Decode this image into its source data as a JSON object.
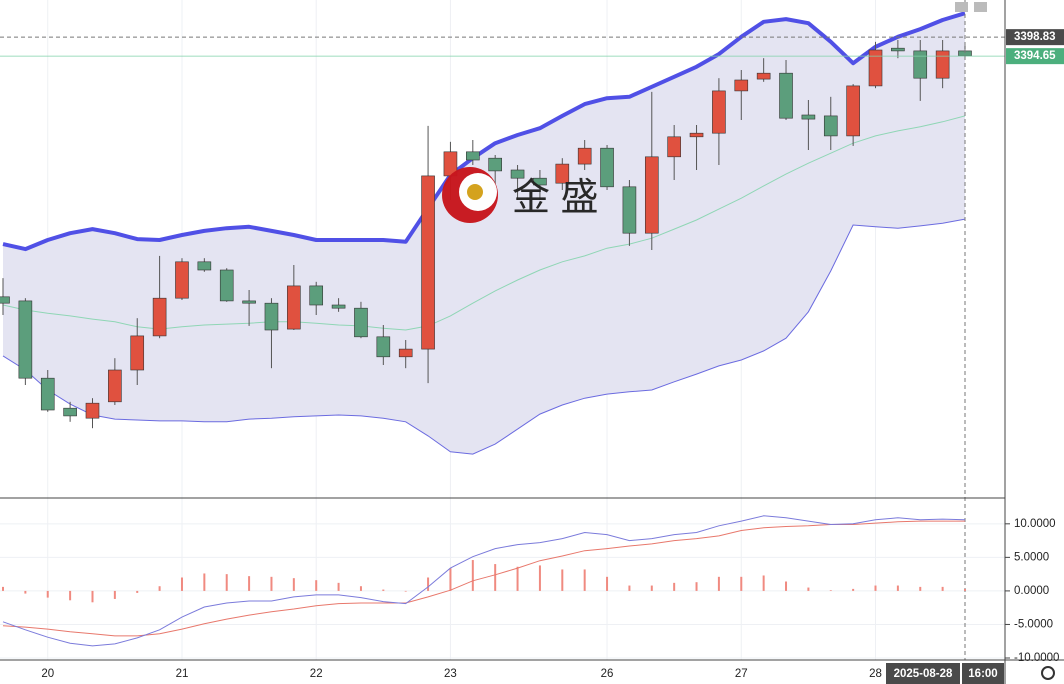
{
  "chart_data": [
    {
      "type": "candlestick",
      "categories": [
        null,
        null,
        "20",
        null,
        null,
        null,
        null,
        null,
        "21",
        null,
        null,
        null,
        null,
        null,
        "22",
        null,
        null,
        null,
        null,
        null,
        "23",
        null,
        null,
        null,
        null,
        null,
        null,
        "26",
        null,
        null,
        null,
        null,
        null,
        "27",
        null,
        null,
        null,
        null,
        null,
        "28",
        null,
        null,
        null,
        null
      ],
      "open": [
        3341.7,
        3340.8,
        3323.8,
        3317.2,
        3315.0,
        3318.6,
        3325.6,
        3333.1,
        3341.4,
        3349.4,
        3347.6,
        3340.8,
        3340.3,
        3334.6,
        3344.1,
        3339.9,
        3339.2,
        3332.9,
        3328.5,
        3330.2,
        3368.3,
        3373.6,
        3372.2,
        3369.6,
        3367.8,
        3366.7,
        3370.9,
        3374.4,
        3365.9,
        3355.7,
        3372.5,
        3376.9,
        3377.7,
        3387.0,
        3389.6,
        3390.9,
        3381.7,
        3381.5,
        3377.1,
        3388.1,
        3396.4,
        3395.8,
        3389.8,
        3395.8
      ],
      "high": [
        3345.8,
        3341.4,
        3325.6,
        3318.6,
        3319.4,
        3328.2,
        3337.0,
        3350.7,
        3350.2,
        3350.2,
        3348.0,
        3343.2,
        3341.4,
        3348.7,
        3345.0,
        3341.4,
        3340.6,
        3335.5,
        3332.2,
        3379.3,
        3375.8,
        3376.2,
        3372.9,
        3370.7,
        3369.6,
        3372.2,
        3376.2,
        3375.1,
        3367.4,
        3386.8,
        3379.5,
        3379.5,
        3389.8,
        3391.6,
        3394.2,
        3393.8,
        3385.0,
        3385.7,
        3388.5,
        3397.8,
        3398.2,
        3398.2,
        3398.2,
        3397.1
      ],
      "low": [
        3337.7,
        3322.3,
        3316.4,
        3314.2,
        3312.8,
        3317.9,
        3322.3,
        3332.6,
        3341.0,
        3347.2,
        3340.6,
        3335.3,
        3326.0,
        3334.4,
        3337.7,
        3338.4,
        3332.6,
        3326.7,
        3326.0,
        3322.7,
        3363.0,
        3370.7,
        3365.2,
        3363.0,
        3363.0,
        3365.2,
        3369.6,
        3365.2,
        3352.9,
        3352.0,
        3367.4,
        3369.6,
        3370.7,
        3380.6,
        3389.0,
        3380.6,
        3374.0,
        3374.0,
        3374.9,
        3387.6,
        3394.2,
        3384.8,
        3387.6,
        3393.8
      ],
      "close": [
        3340.3,
        3323.8,
        3316.8,
        3315.5,
        3318.3,
        3325.6,
        3333.1,
        3341.4,
        3349.4,
        3347.6,
        3340.8,
        3340.3,
        3334.4,
        3344.1,
        3339.9,
        3339.2,
        3332.9,
        3328.5,
        3330.2,
        3368.3,
        3373.6,
        3371.8,
        3369.4,
        3367.8,
        3366.3,
        3370.9,
        3374.4,
        3365.9,
        3355.7,
        3372.5,
        3376.9,
        3377.7,
        3387.0,
        3389.4,
        3390.9,
        3381.0,
        3380.8,
        3377.1,
        3388.1,
        3396.0,
        3395.8,
        3389.8,
        3395.8,
        3394.7
      ],
      "up_color": "#e0513f",
      "down_color": "#5c9e7c",
      "bands": {
        "upper": [
          3353.3,
          3352.2,
          3354.2,
          3355.7,
          3356.6,
          3355.7,
          3354.4,
          3354.2,
          3355.3,
          3356.2,
          3356.8,
          3357.1,
          3356.2,
          3355.3,
          3354.2,
          3354.2,
          3354.2,
          3354.2,
          3353.8,
          3361.2,
          3368.5,
          3372.2,
          3375.5,
          3377.3,
          3378.8,
          3381.5,
          3384.1,
          3385.4,
          3385.7,
          3387.9,
          3390.1,
          3392.3,
          3395.1,
          3398.9,
          3402.2,
          3402.8,
          3401.9,
          3397.8,
          3393.1,
          3396.7,
          3398.9,
          3400.6,
          3402.6,
          3404.1
        ],
        "middle": [
          3339.9,
          3338.8,
          3338.1,
          3337.5,
          3336.8,
          3336.2,
          3335.1,
          3334.6,
          3335.1,
          3335.5,
          3335.7,
          3335.9,
          3336.2,
          3336.2,
          3335.9,
          3335.5,
          3335.3,
          3334.8,
          3334.4,
          3335.3,
          3337.5,
          3340.3,
          3343.0,
          3345.4,
          3347.6,
          3349.4,
          3350.7,
          3352.4,
          3353.3,
          3354.6,
          3356.6,
          3358.6,
          3361.0,
          3363.4,
          3366.1,
          3368.7,
          3371.1,
          3373.3,
          3375.5,
          3377.1,
          3378.2,
          3379.1,
          3380.2,
          3381.5
        ],
        "lower": [
          3328.7,
          3325.6,
          3321.2,
          3318.1,
          3315.7,
          3314.8,
          3314.6,
          3314.4,
          3314.4,
          3314.2,
          3314.2,
          3314.8,
          3315.0,
          3315.3,
          3315.5,
          3315.7,
          3315.5,
          3315.0,
          3314.2,
          3311.1,
          3307.6,
          3307.1,
          3309.3,
          3312.6,
          3315.9,
          3317.9,
          3319.4,
          3320.3,
          3320.8,
          3321.2,
          3323.0,
          3324.7,
          3326.5,
          3327.8,
          3329.8,
          3332.6,
          3338.4,
          3347.4,
          3357.5,
          3357.1,
          3356.8,
          3357.3,
          3357.9,
          3358.8
        ],
        "upper_color": "#5050e6",
        "middle_color": "#8fd6b5",
        "lower_color": "#6b6be0",
        "fill": "#e4e4f2"
      },
      "ylim": [
        3297.66,
        3407
      ],
      "crosshair_price": 3398.83,
      "last_price": 3394.65,
      "crosshair_date": "2025-08-28",
      "crosshair_time": "16:00",
      "watermark": "金 盛",
      "grid": true
    },
    {
      "type": "macd",
      "dif": [
        -4.6,
        -5.8,
        -6.9,
        -7.8,
        -8.2,
        -7.9,
        -7.0,
        -5.8,
        -3.9,
        -2.4,
        -1.8,
        -1.5,
        -1.5,
        -0.9,
        -0.6,
        -0.6,
        -1.0,
        -1.6,
        -1.9,
        0.6,
        3.4,
        5.1,
        6.3,
        6.9,
        7.2,
        7.8,
        8.7,
        8.4,
        7.5,
        7.8,
        8.4,
        8.7,
        9.7,
        10.4,
        11.2,
        10.9,
        10.4,
        9.9,
        10.0,
        10.6,
        10.9,
        10.6,
        10.7,
        10.6
      ],
      "dea": [
        -5.2,
        -5.4,
        -5.7,
        -6.1,
        -6.4,
        -6.7,
        -6.7,
        -6.4,
        -5.7,
        -4.9,
        -4.2,
        -3.6,
        -3.1,
        -2.7,
        -2.2,
        -1.9,
        -1.8,
        -1.8,
        -1.8,
        -0.9,
        0.1,
        1.5,
        2.4,
        3.4,
        4.5,
        5.2,
        6.0,
        6.3,
        6.7,
        7.0,
        7.5,
        7.8,
        8.2,
        9.0,
        9.4,
        9.6,
        9.7,
        9.9,
        9.9,
        10.1,
        10.3,
        10.4,
        10.4,
        10.4
      ],
      "hist": [
        0.6,
        -0.4,
        -1.0,
        -1.4,
        -1.7,
        -1.2,
        -0.3,
        0.7,
        2.0,
        2.6,
        2.5,
        2.2,
        2.1,
        1.9,
        1.6,
        1.2,
        0.7,
        0.2,
        -0.1,
        2.0,
        3.4,
        4.6,
        4.0,
        3.6,
        3.8,
        3.2,
        3.2,
        2.1,
        0.8,
        0.8,
        1.2,
        1.3,
        2.1,
        2.1,
        2.3,
        1.4,
        0.5,
        0.1,
        0.3,
        0.8,
        0.8,
        0.6,
        0.6,
        0.3
      ],
      "dif_color": "#7b7bdb",
      "dea_color": "#e8786c",
      "hist_color": "#f08a80",
      "ylim": [
        -10.3,
        13.7
      ],
      "yticks": [
        {
          "value": 10,
          "label": "10.0000"
        },
        {
          "value": 5,
          "label": "5.0000"
        },
        {
          "value": 0,
          "label": "0.0000"
        },
        {
          "value": -5,
          "label": "-5.0000"
        },
        {
          "value": -10,
          "label": "-10.0000"
        }
      ],
      "grid": true
    }
  ]
}
